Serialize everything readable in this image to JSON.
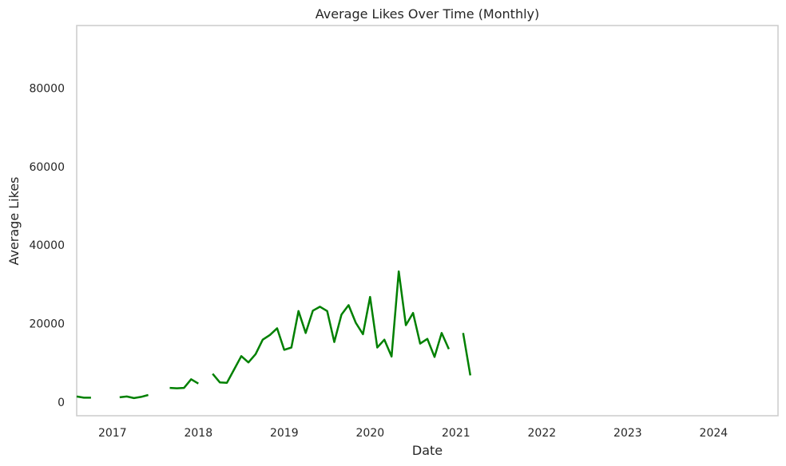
{
  "chart_data": {
    "type": "line",
    "title": "Average Likes Over Time (Monthly)",
    "xlabel": "Date",
    "ylabel": "Average Likes",
    "x_ticks": [
      "2017",
      "2018",
      "2019",
      "2020",
      "2021",
      "2022",
      "2023",
      "2024"
    ],
    "y_ticks": [
      0,
      20000,
      40000,
      60000,
      80000
    ],
    "xlim": [
      "2016-08",
      "2024-10"
    ],
    "ylim": [
      -3500,
      96000
    ],
    "grid": false,
    "line_color": "#008000",
    "series": [
      {
        "name": "",
        "points": [
          [
            "2016-08",
            1400
          ],
          [
            "2016-09",
            1100
          ],
          [
            "2016-10",
            1100
          ],
          [
            "2016-11",
            null
          ],
          [
            "2016-12",
            null
          ],
          [
            "2017-01",
            null
          ],
          [
            "2017-02",
            1200
          ],
          [
            "2017-03",
            1400
          ],
          [
            "2017-04",
            1000
          ],
          [
            "2017-05",
            1300
          ],
          [
            "2017-06",
            1800
          ],
          [
            "2017-07",
            null
          ],
          [
            "2017-08",
            null
          ],
          [
            "2017-09",
            3600
          ],
          [
            "2017-10",
            3500
          ],
          [
            "2017-11",
            3600
          ],
          [
            "2017-12",
            5800
          ],
          [
            "2018-01",
            4700
          ],
          [
            "2018-02",
            null
          ],
          [
            "2018-03",
            7200
          ],
          [
            "2018-04",
            5000
          ],
          [
            "2018-05",
            4900
          ],
          [
            "2018-06",
            8300
          ],
          [
            "2018-07",
            11700
          ],
          [
            "2018-08",
            10100
          ],
          [
            "2018-09",
            12200
          ],
          [
            "2018-10",
            15900
          ],
          [
            "2018-11",
            17100
          ],
          [
            "2018-12",
            18800
          ],
          [
            "2019-01",
            13300
          ],
          [
            "2019-02",
            13900
          ],
          [
            "2019-03",
            23200
          ],
          [
            "2019-04",
            17600
          ],
          [
            "2019-05",
            23300
          ],
          [
            "2019-06",
            24300
          ],
          [
            "2019-07",
            23200
          ],
          [
            "2019-08",
            15300
          ],
          [
            "2019-09",
            22300
          ],
          [
            "2019-10",
            24700
          ],
          [
            "2019-11",
            20200
          ],
          [
            "2019-12",
            17300
          ],
          [
            "2020-01",
            26800
          ],
          [
            "2020-02",
            13900
          ],
          [
            "2020-03",
            15900
          ],
          [
            "2020-04",
            11600
          ],
          [
            "2020-05",
            33300
          ],
          [
            "2020-06",
            19600
          ],
          [
            "2020-07",
            22700
          ],
          [
            "2020-08",
            14900
          ],
          [
            "2020-09",
            16100
          ],
          [
            "2020-10",
            11500
          ],
          [
            "2020-11",
            17600
          ],
          [
            "2020-12",
            13500
          ],
          [
            "2021-01",
            null
          ],
          [
            "2021-02",
            17600
          ],
          [
            "2021-03",
            6800
          ]
        ]
      }
    ]
  }
}
